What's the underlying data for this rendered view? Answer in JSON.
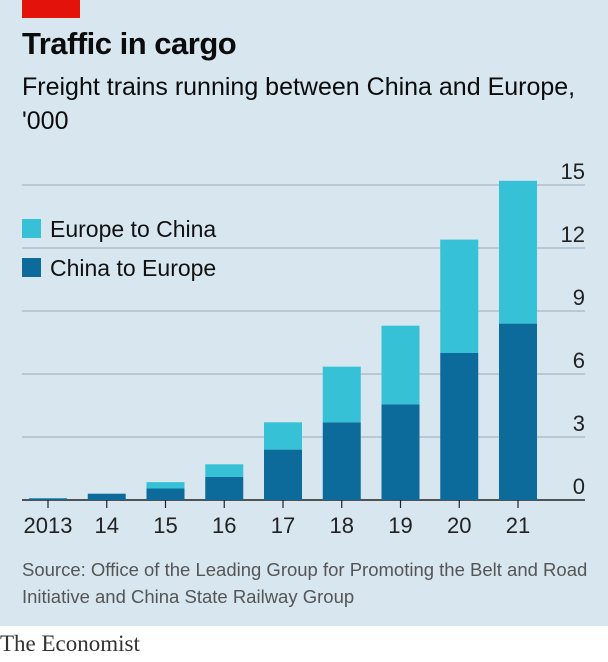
{
  "header": {
    "title": "Traffic in cargo",
    "subtitle": "Freight trains running between China and Europe, '000"
  },
  "source": "Source: Office of the Leading Group for Promoting the Belt and Road Initiative and China State Railway Group",
  "brand": "The Economist",
  "colors": {
    "background": "#d7e6ef",
    "accent": "#e3120b",
    "china_to_europe": "#0d6b9c",
    "europe_to_china": "#36c1d6"
  },
  "chart_data": {
    "type": "bar",
    "stacked": true,
    "categories": [
      "2013",
      "14",
      "15",
      "16",
      "17",
      "18",
      "19",
      "20",
      "21"
    ],
    "series": [
      {
        "name": "China to Europe",
        "values": [
          0.08,
          0.3,
          0.55,
          1.1,
          2.4,
          3.7,
          4.55,
          7.0,
          8.4
        ]
      },
      {
        "name": "Europe to China",
        "values": [
          0.0,
          0.0,
          0.3,
          0.6,
          1.3,
          2.65,
          3.75,
          5.4,
          6.8
        ]
      }
    ],
    "yticks": [
      0,
      3,
      6,
      9,
      12,
      15
    ],
    "ylim": [
      0,
      15
    ],
    "yaxis_side": "right",
    "grid": true,
    "legend": {
      "position": "top-left",
      "entries": [
        "Europe to China",
        "China to Europe"
      ]
    }
  }
}
